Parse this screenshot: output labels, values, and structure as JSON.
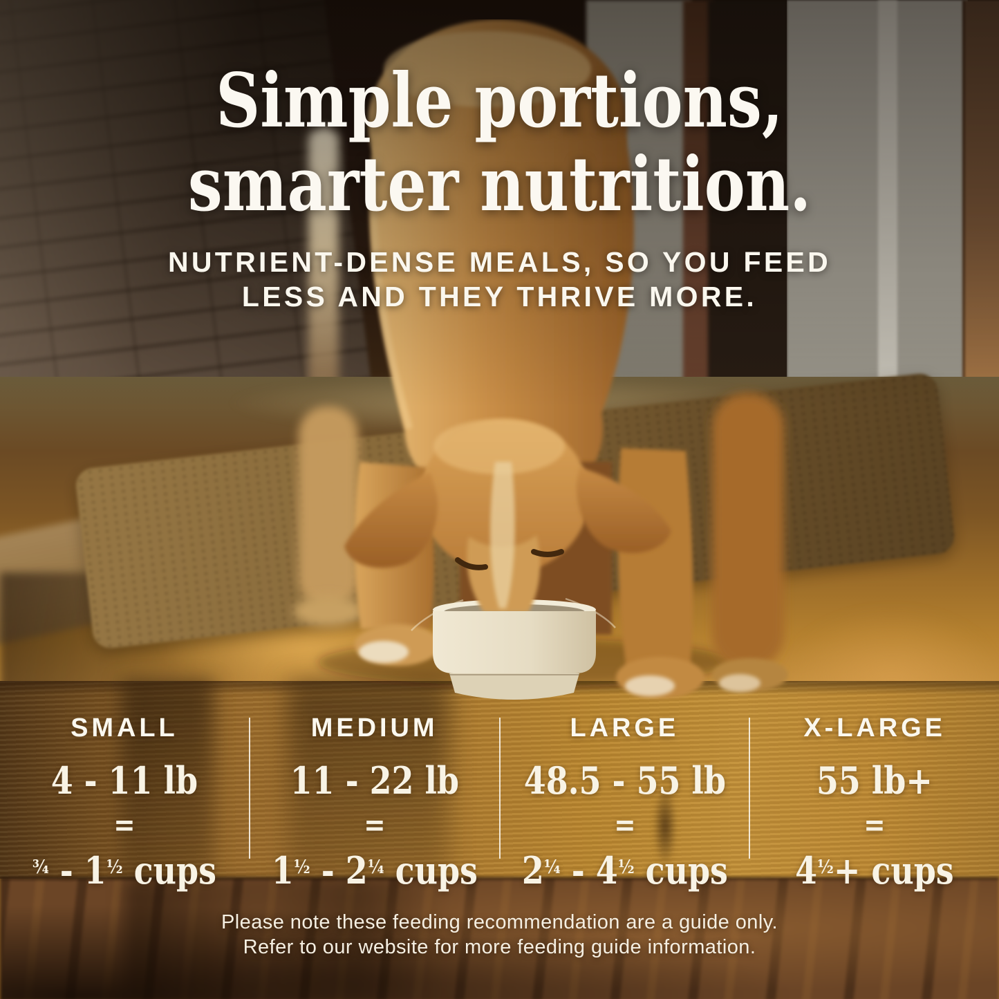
{
  "headline": {
    "line1": "Simple portions,",
    "line2": "smarter nutrition."
  },
  "subheadline": {
    "line1": "NUTRIENT-DENSE MEALS, SO YOU FEED",
    "line2": "LESS AND THEY THRIVE MORE."
  },
  "feeding_guide": {
    "columns": [
      {
        "size": "SMALL",
        "weight": "4 - 11 lb",
        "equals": "=",
        "cups": "¾ - 1½ cups"
      },
      {
        "size": "MEDIUM",
        "weight": "11 - 22 lb",
        "equals": "=",
        "cups": "1½ - 2¼ cups"
      },
      {
        "size": "LARGE",
        "weight": "48.5 - 55 lb",
        "equals": "=",
        "cups": "2¼ - 4½ cups"
      },
      {
        "size": "X-LARGE",
        "weight": "55 lb+",
        "equals": "=",
        "cups": "4½+ cups"
      }
    ]
  },
  "disclaimer": {
    "line1": "Please note these feeding recommendation are a guide only.",
    "line2": "Refer to our website for more feeding guide information."
  },
  "scene": {
    "description": "Golden dog eating from a cream ceramic bowl in a warm sunlit hallway with a brick wall, runner rug and wooden floor; feeding guide printed on the wooden step in the foreground",
    "elements": [
      "brick-wall",
      "hallway-door",
      "runner-rug",
      "wood-floor",
      "golden-dog",
      "cream-food-bowl",
      "wood-step-face"
    ],
    "colors": {
      "text": "#fbf8f0",
      "wood_bright": "#c08a38",
      "wood_dark": "#5c3d1d",
      "fur": "#c88f4a",
      "bowl": "#e9e0ca",
      "rug": "#bfa87e",
      "brick": "#6b5949"
    }
  }
}
